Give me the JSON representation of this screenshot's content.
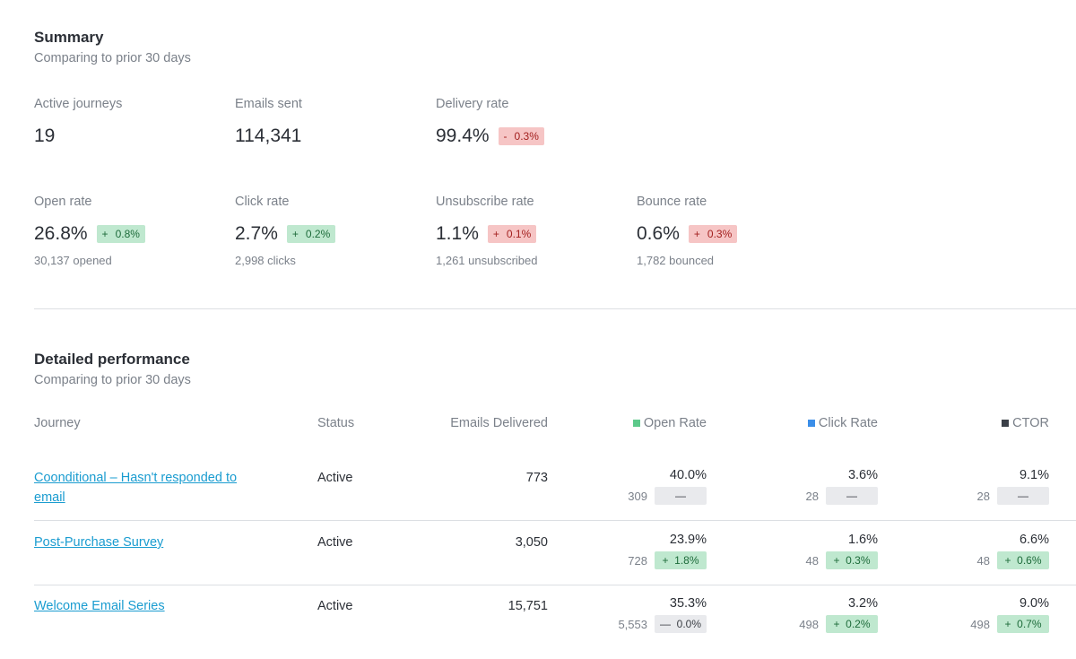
{
  "summary": {
    "title": "Summary",
    "subtitle": "Comparing to prior 30 days",
    "metrics": [
      {
        "label": "Active journeys",
        "value": "19"
      },
      {
        "label": "Emails sent",
        "value": "114,341"
      },
      {
        "label": "Delivery rate",
        "value": "99.4%",
        "change_sign": "-",
        "change": "0.3%",
        "trend": "negative"
      },
      {
        "label": "Open rate",
        "value": "26.8%",
        "change_sign": "+",
        "change": "0.8%",
        "trend": "positive",
        "detail": "30,137 opened"
      },
      {
        "label": "Click rate",
        "value": "2.7%",
        "change_sign": "+",
        "change": "0.2%",
        "trend": "positive",
        "detail": "2,998 clicks"
      },
      {
        "label": "Unsubscribe rate",
        "value": "1.1%",
        "change_sign": "+",
        "change": "0.1%",
        "trend": "negative",
        "detail": "1,261 unsubscribed"
      },
      {
        "label": "Bounce rate",
        "value": "0.6%",
        "change_sign": "+",
        "change": "0.3%",
        "trend": "negative",
        "detail": "1,782 bounced"
      }
    ]
  },
  "detailed": {
    "title": "Detailed performance",
    "subtitle": "Comparing to prior 30 days",
    "columns": {
      "journey": "Journey",
      "status": "Status",
      "delivered": "Emails Delivered",
      "open": "Open Rate",
      "click": "Click Rate",
      "ctor": "CTOR"
    },
    "legend_colors": {
      "open": "#5cc98a",
      "click": "#3b8ee8",
      "ctor": "#3a3f47"
    },
    "rows": [
      {
        "journey": "Coonditional – Hasn't responded to email",
        "status": "Active",
        "delivered": "773",
        "open": {
          "pct": "40.0%",
          "count": "309",
          "badge": "—",
          "trend": "neutral"
        },
        "click": {
          "pct": "3.6%",
          "count": "28",
          "badge": "—",
          "trend": "neutral"
        },
        "ctor": {
          "pct": "9.1%",
          "count": "28",
          "badge": "—",
          "trend": "neutral"
        }
      },
      {
        "journey": "Post-Purchase Survey",
        "status": "Active",
        "delivered": "3,050",
        "open": {
          "pct": "23.9%",
          "count": "728",
          "badge": "+  1.8%",
          "trend": "positive"
        },
        "click": {
          "pct": "1.6%",
          "count": "48",
          "badge": "+  0.3%",
          "trend": "positive"
        },
        "ctor": {
          "pct": "6.6%",
          "count": "48",
          "badge": "+  0.6%",
          "trend": "positive"
        }
      },
      {
        "journey": "Welcome Email Series",
        "status": "Active",
        "delivered": "15,751",
        "open": {
          "pct": "35.3%",
          "count": "5,553",
          "badge": "—  0.0%",
          "trend": "neutral"
        },
        "click": {
          "pct": "3.2%",
          "count": "498",
          "badge": "+  0.2%",
          "trend": "positive"
        },
        "ctor": {
          "pct": "9.0%",
          "count": "498",
          "badge": "+  0.7%",
          "trend": "positive"
        }
      }
    ]
  }
}
